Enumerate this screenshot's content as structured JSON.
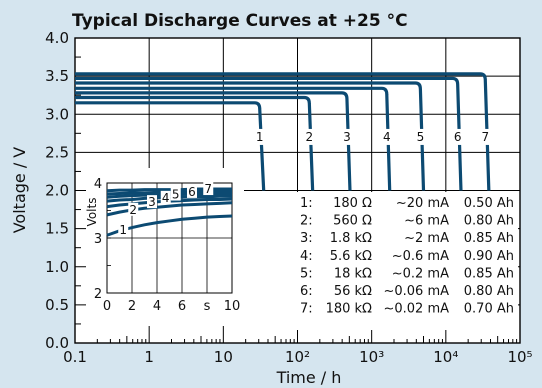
{
  "chart_data": {
    "type": "line",
    "title": "Typical Discharge Curves at +25 °C",
    "xlabel": "Time / h",
    "ylabel": "Voltage / V",
    "x_scale": "log",
    "xlim": [
      0.1,
      100000
    ],
    "ylim": [
      0.0,
      4.0
    ],
    "x_ticks": [
      "0.1",
      "1",
      "10",
      "10²",
      "10³",
      "10⁴",
      "10⁵"
    ],
    "y_ticks": [
      "0.0",
      "0.5",
      "1.0",
      "1.5",
      "2.0",
      "2.5",
      "3.0",
      "3.5",
      "4.0"
    ],
    "grid": true,
    "line_color": "#0c4a72",
    "series": [
      {
        "name": "1",
        "x": [
          0.1,
          30,
          35
        ],
        "y": [
          3.15,
          3.15,
          2.0
        ]
      },
      {
        "name": "2",
        "x": [
          0.1,
          140,
          160
        ],
        "y": [
          3.22,
          3.22,
          2.0
        ]
      },
      {
        "name": "3",
        "x": [
          0.1,
          450,
          510
        ],
        "y": [
          3.28,
          3.28,
          2.0
        ]
      },
      {
        "name": "4",
        "x": [
          0.1,
          1550,
          1750
        ],
        "y": [
          3.34,
          3.34,
          2.0
        ]
      },
      {
        "name": "5",
        "x": [
          0.1,
          4400,
          5000
        ],
        "y": [
          3.41,
          3.41,
          2.0
        ]
      },
      {
        "name": "6",
        "x": [
          0.1,
          14000,
          16000
        ],
        "y": [
          3.47,
          3.47,
          2.0
        ]
      },
      {
        "name": "7",
        "x": [
          0.1,
          33000,
          38000
        ],
        "y": [
          3.53,
          3.53,
          2.0
        ]
      }
    ],
    "table": [
      {
        "n": "1:",
        "load": "180 Ω",
        "current": "~20 mA",
        "capacity": "0.50 Ah"
      },
      {
        "n": "2:",
        "load": "560 Ω",
        "current": "~6 mA",
        "capacity": "0.80 Ah"
      },
      {
        "n": "3:",
        "load": "1.8 kΩ",
        "current": "~2 mA",
        "capacity": "0.85 Ah"
      },
      {
        "n": "4:",
        "load": "5.6 kΩ",
        "current": "~0.6 mA",
        "capacity": "0.90 Ah"
      },
      {
        "n": "5:",
        "load": "18 kΩ",
        "current": "~0.2 mA",
        "capacity": "0.85 Ah"
      },
      {
        "n": "6:",
        "load": "56 kΩ",
        "current": "~0.06 mA",
        "capacity": "0.80 Ah"
      },
      {
        "n": "7:",
        "load": "180 kΩ",
        "current": "~0.02 mA",
        "capacity": "0.70 Ah"
      }
    ],
    "inset": {
      "ylabel": "Volts",
      "xunit": "s",
      "xlim": [
        0,
        10
      ],
      "ylim": [
        2,
        4
      ],
      "x_ticks": [
        "0",
        "2",
        "4",
        "6",
        "s",
        "10"
      ],
      "y_ticks": [
        "2",
        "3",
        "4"
      ],
      "series": [
        {
          "name": "1",
          "x": [
            0,
            1,
            2,
            3,
            4,
            5,
            6,
            7,
            8,
            9,
            10
          ],
          "y": [
            3.05,
            3.13,
            3.19,
            3.24,
            3.28,
            3.31,
            3.34,
            3.36,
            3.38,
            3.39,
            3.4
          ]
        },
        {
          "name": "2",
          "x": [
            0,
            1,
            2,
            3,
            4,
            5,
            6,
            7,
            8,
            9,
            10
          ],
          "y": [
            3.42,
            3.47,
            3.51,
            3.54,
            3.56,
            3.58,
            3.6,
            3.61,
            3.62,
            3.63,
            3.64
          ]
        },
        {
          "name": "3",
          "x": [
            0,
            1,
            2,
            3,
            4,
            5,
            6,
            7,
            8,
            9,
            10
          ],
          "y": [
            3.57,
            3.6,
            3.62,
            3.64,
            3.66,
            3.67,
            3.68,
            3.69,
            3.7,
            3.7,
            3.71
          ]
        },
        {
          "name": "4",
          "x": [
            0,
            1,
            2,
            3,
            4,
            5,
            6,
            7,
            8,
            9,
            10
          ],
          "y": [
            3.67,
            3.69,
            3.7,
            3.72,
            3.73,
            3.73,
            3.74,
            3.75,
            3.75,
            3.76,
            3.76
          ]
        },
        {
          "name": "5",
          "x": [
            0,
            1,
            2,
            3,
            4,
            5,
            6,
            7,
            8,
            9,
            10
          ],
          "y": [
            3.74,
            3.76,
            3.77,
            3.78,
            3.78,
            3.79,
            3.79,
            3.8,
            3.8,
            3.8,
            3.81
          ]
        },
        {
          "name": "6",
          "x": [
            0,
            1,
            2,
            3,
            4,
            5,
            6,
            7,
            8,
            9,
            10
          ],
          "y": [
            3.8,
            3.81,
            3.82,
            3.82,
            3.83,
            3.83,
            3.83,
            3.84,
            3.84,
            3.84,
            3.84
          ]
        },
        {
          "name": "7",
          "x": [
            0,
            1,
            2,
            3,
            4,
            5,
            6,
            7,
            8,
            9,
            10
          ],
          "y": [
            3.86,
            3.87,
            3.87,
            3.88,
            3.88,
            3.88,
            3.88,
            3.89,
            3.89,
            3.89,
            3.89
          ]
        }
      ]
    }
  }
}
